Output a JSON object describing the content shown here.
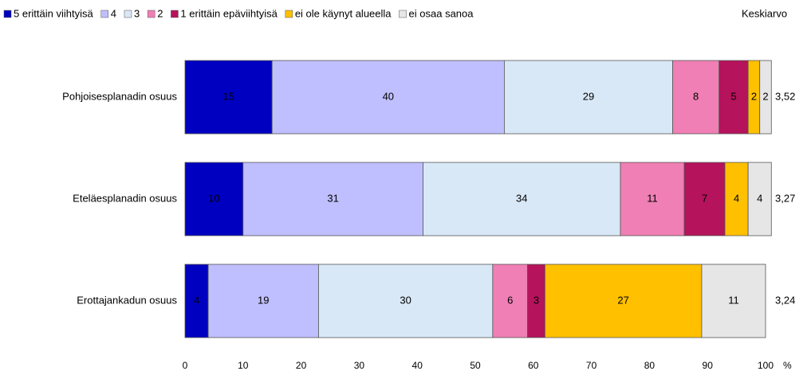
{
  "chart_data": {
    "type": "stacked-barh",
    "categories": [
      "Pohjoisesplanadin osuus",
      "Eteläesplanadin osuus",
      "Erottajankadun osuus"
    ],
    "series": [
      {
        "name": "5 erittäin viihtyisä",
        "color": "#0000c0",
        "values": [
          15,
          10,
          4
        ]
      },
      {
        "name": "4",
        "color": "#bfbfff",
        "values": [
          40,
          31,
          19
        ]
      },
      {
        "name": "3",
        "color": "#d9e8f7",
        "values": [
          29,
          34,
          30
        ]
      },
      {
        "name": "2",
        "color": "#f07fb5",
        "values": [
          8,
          11,
          6
        ]
      },
      {
        "name": "1 erittäin epäviihtyisä",
        "color": "#b5135b",
        "values": [
          5,
          7,
          3
        ]
      },
      {
        "name": "ei ole käynyt alueella",
        "color": "#ffc000",
        "values": [
          2,
          4,
          27
        ]
      },
      {
        "name": "ei osaa sanoa",
        "color": "#e6e6e6",
        "values": [
          2,
          4,
          11
        ]
      }
    ],
    "average_title": "Keskiarvo",
    "averages": [
      {
        "value": 3.52,
        "label": "3,52"
      },
      {
        "value": 3.27,
        "label": "3,27"
      },
      {
        "value": 3.24,
        "label": "3,24"
      }
    ],
    "xlim": [
      0,
      100
    ],
    "xticks": [
      0,
      10,
      20,
      30,
      40,
      50,
      60,
      70,
      80,
      90,
      100
    ],
    "x_unit": "%",
    "legend": "top"
  }
}
